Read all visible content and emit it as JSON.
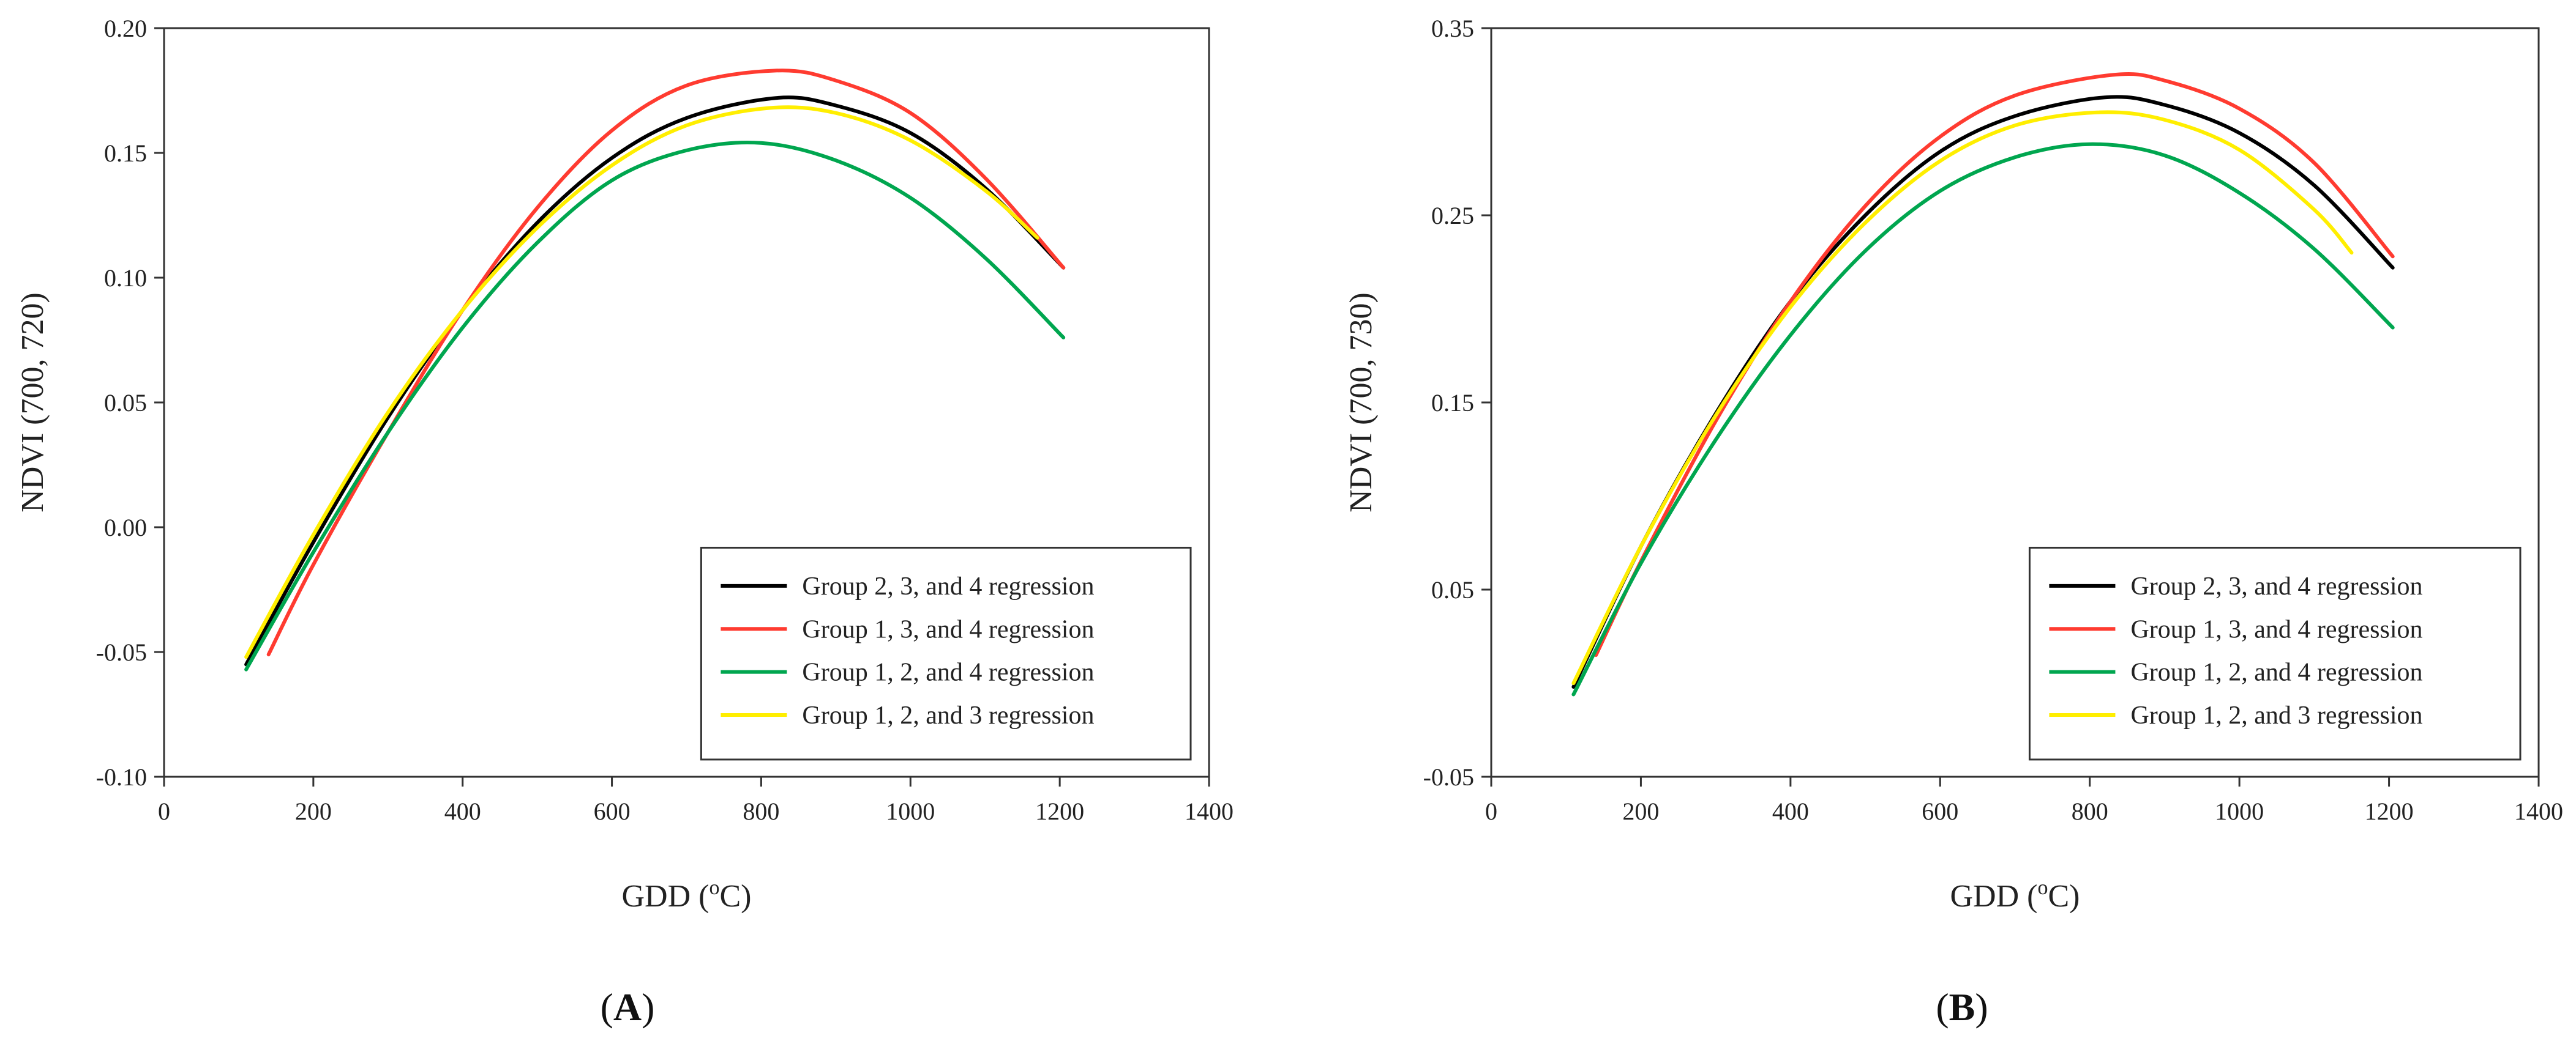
{
  "chart_data": [
    {
      "type": "line",
      "panel_label": "A",
      "xlabel": "GDD (",
      "xlabel_sup": "o",
      "xlabel_tail": "C)",
      "ylabel": "NDVI (700, 720)",
      "xlim": [
        0,
        1400
      ],
      "ylim": [
        -0.1,
        0.2
      ],
      "xticks": [
        "0",
        "200",
        "400",
        "600",
        "800",
        "1000",
        "1200",
        "1400"
      ],
      "xtick_values": [
        0,
        200,
        400,
        600,
        800,
        1000,
        1200,
        1400
      ],
      "yticks": [
        "-0.10",
        "-0.05",
        "0.00",
        "0.05",
        "0.10",
        "0.15",
        "0.20"
      ],
      "ytick_values": [
        -0.1,
        -0.05,
        0.0,
        0.05,
        0.1,
        0.15,
        0.2
      ],
      "legend_position": "bottom-right",
      "series": [
        {
          "name": "Group 2, 3, and 4 regression",
          "color": "#000000",
          "x": [
            110,
            200,
            300,
            400,
            500,
            600,
            700,
            820,
            900,
            1000,
            1100,
            1205
          ],
          "values": [
            -0.055,
            -0.006,
            0.044,
            0.087,
            0.122,
            0.148,
            0.164,
            0.172,
            0.169,
            0.158,
            0.136,
            0.104
          ]
        },
        {
          "name": "Group 1, 3, and 4 regression",
          "color": "#ff3b30",
          "x": [
            140,
            200,
            300,
            400,
            500,
            600,
            700,
            820,
            900,
            1000,
            1100,
            1205
          ],
          "values": [
            -0.051,
            -0.015,
            0.038,
            0.087,
            0.128,
            0.159,
            0.177,
            0.183,
            0.179,
            0.166,
            0.14,
            0.104
          ]
        },
        {
          "name": "Group 1, 2, and 4 regression",
          "color": "#00a64f",
          "x": [
            110,
            200,
            300,
            400,
            500,
            600,
            700,
            800,
            900,
            1000,
            1100,
            1205
          ],
          "values": [
            -0.057,
            -0.01,
            0.038,
            0.08,
            0.114,
            0.139,
            0.151,
            0.154,
            0.147,
            0.132,
            0.108,
            0.076
          ]
        },
        {
          "name": "Group 1, 2, and 3 regression",
          "color": "#ffee00",
          "x": [
            110,
            200,
            300,
            400,
            500,
            600,
            700,
            810,
            900,
            1000,
            1100,
            1170
          ],
          "values": [
            -0.052,
            -0.003,
            0.046,
            0.087,
            0.12,
            0.145,
            0.161,
            0.168,
            0.166,
            0.155,
            0.135,
            0.116
          ]
        }
      ]
    },
    {
      "type": "line",
      "panel_label": "B",
      "xlabel": "GDD (",
      "xlabel_sup": "o",
      "xlabel_tail": "C)",
      "ylabel": "NDVI (700, 730)",
      "xlim": [
        0,
        1400
      ],
      "ylim": [
        -0.05,
        0.35
      ],
      "xticks": [
        "0",
        "200",
        "400",
        "600",
        "800",
        "1000",
        "1200",
        "1400"
      ],
      "xtick_values": [
        0,
        200,
        400,
        600,
        800,
        1000,
        1200,
        1400
      ],
      "yticks": [
        "-0.05",
        "0.05",
        "0.15",
        "0.25",
        "0.35"
      ],
      "ytick_values": [
        -0.05,
        0.05,
        0.15,
        0.25,
        0.35
      ],
      "legend_position": "bottom-right",
      "series": [
        {
          "name": "Group 2, 3, and 4 regression",
          "color": "#000000",
          "x": [
            110,
            200,
            300,
            400,
            500,
            600,
            700,
            820,
            900,
            1000,
            1100,
            1205
          ],
          "values": [
            -0.002,
            0.073,
            0.144,
            0.204,
            0.25,
            0.284,
            0.303,
            0.313,
            0.309,
            0.294,
            0.266,
            0.222
          ]
        },
        {
          "name": "Group 1, 3, and 4 regression",
          "color": "#ff3b30",
          "x": [
            140,
            200,
            300,
            400,
            500,
            600,
            700,
            830,
            900,
            1000,
            1100,
            1205
          ],
          "values": [
            0.015,
            0.065,
            0.14,
            0.204,
            0.255,
            0.292,
            0.314,
            0.325,
            0.322,
            0.307,
            0.278,
            0.228
          ]
        },
        {
          "name": "Group 1, 2, and 4 regression",
          "color": "#00a64f",
          "x": [
            110,
            200,
            300,
            400,
            500,
            600,
            700,
            800,
            900,
            1000,
            1100,
            1205
          ],
          "values": [
            -0.006,
            0.064,
            0.13,
            0.186,
            0.231,
            0.263,
            0.281,
            0.288,
            0.282,
            0.262,
            0.232,
            0.19
          ]
        },
        {
          "name": "Group 1, 2, and 3 regression",
          "color": "#ffee00",
          "x": [
            110,
            200,
            300,
            400,
            500,
            600,
            700,
            810,
            900,
            1000,
            1100,
            1150
          ],
          "values": [
            0.0,
            0.073,
            0.143,
            0.201,
            0.246,
            0.279,
            0.298,
            0.305,
            0.301,
            0.285,
            0.253,
            0.23
          ]
        }
      ]
    }
  ]
}
